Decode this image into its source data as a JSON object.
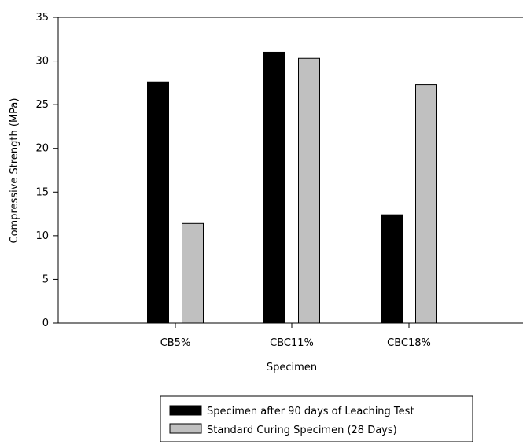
{
  "chart_data": {
    "type": "bar",
    "categories": [
      "CB5%",
      "CBC11%",
      "CBC18%"
    ],
    "series": [
      {
        "name": "Specimen after 90 days of Leaching Test",
        "values": [
          27.6,
          31.0,
          12.4
        ],
        "color": "#000000"
      },
      {
        "name": "Standard Curing Specimen (28 Days)",
        "values": [
          11.4,
          30.3,
          27.3
        ],
        "color": "#c0c0c0"
      }
    ],
    "xlabel": "Specimen",
    "ylabel": "Compressive Strength (MPa)",
    "ylim": [
      0,
      35
    ],
    "yticks": [
      0,
      5,
      10,
      15,
      20,
      25,
      30,
      35
    ],
    "grid": false,
    "legend_position": "bottom"
  }
}
